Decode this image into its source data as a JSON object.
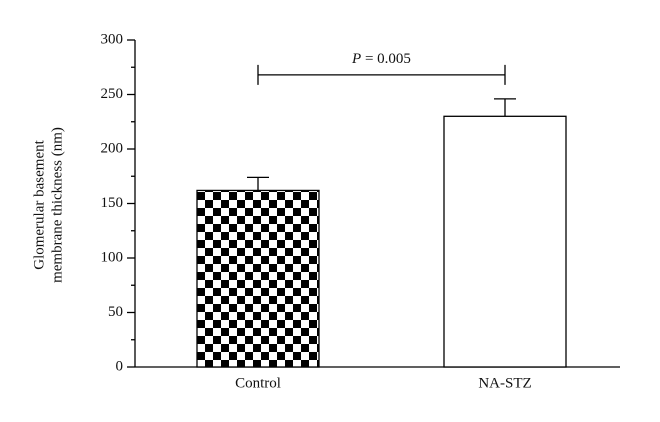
{
  "chart_data": {
    "type": "bar",
    "y_label_lines": [
      "Glomerular basement",
      "membrane thickness (nm)"
    ],
    "categories": [
      "Control",
      "NA-STZ"
    ],
    "values": [
      162,
      230
    ],
    "errors": [
      12,
      16
    ],
    "bar_styles": [
      "checkerboard",
      "open"
    ],
    "color": "#000000",
    "ylim": [
      0,
      300
    ],
    "yticks": [
      0,
      50,
      100,
      150,
      200,
      250,
      300
    ],
    "minor_yticks": [
      25,
      75,
      125,
      175,
      225,
      275
    ],
    "bracket": {
      "y": 268,
      "symbol": "P",
      "text": " = 0.005"
    }
  }
}
